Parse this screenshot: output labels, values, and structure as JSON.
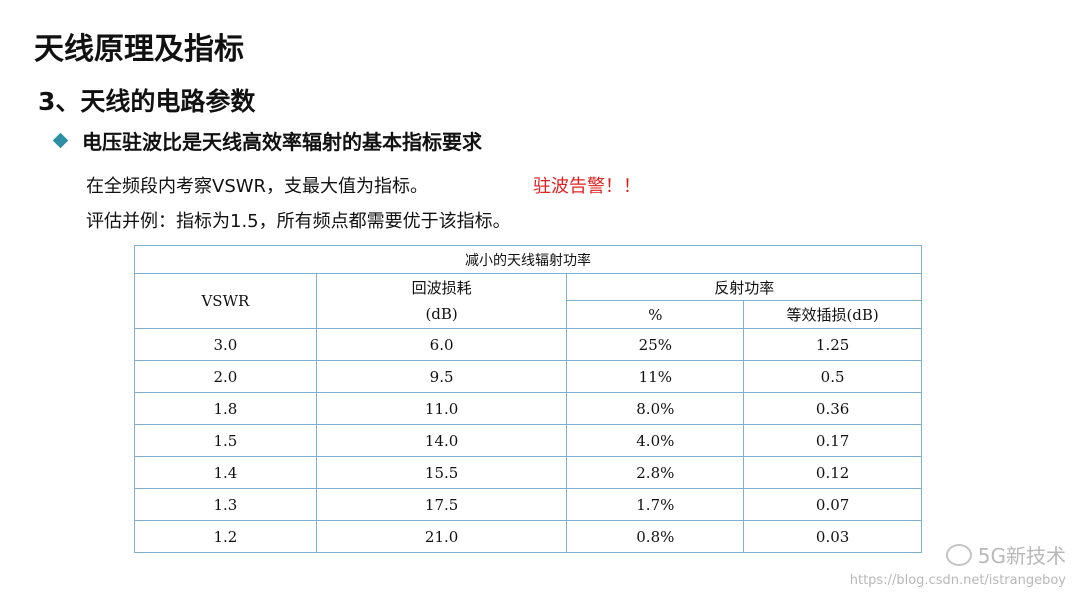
{
  "page_title": "天线原理及指标",
  "section_title": "3、天线的电路参数",
  "bullet": "电压驻波比是天线高效率辐射的基本指标要求",
  "line1": "在全频段内考察VSWR，支最大值为指标。",
  "warning": "驻波告警！！",
  "line2": "评估并例：指标为1.5，所有频点都需要优于该指标。",
  "accent_color": "#2e8ea3",
  "warning_color": "#e02020",
  "table": {
    "caption": "减小的天线辐射功率",
    "col_vswr": "VSWR",
    "col_return_loss": "回波损耗",
    "col_return_loss_unit": "(dB)",
    "col_reflected_power": "反射功率",
    "col_percent": "%",
    "col_insertion_loss": "等效插损(dB)",
    "rows": [
      {
        "vswr": "3.0",
        "return_loss": "6.0",
        "percent": "25%",
        "insertion_loss": "1.25"
      },
      {
        "vswr": "2.0",
        "return_loss": "9.5",
        "percent": "11%",
        "insertion_loss": "0.5"
      },
      {
        "vswr": "1.8",
        "return_loss": "11.0",
        "percent": "8.0%",
        "insertion_loss": "0.36"
      },
      {
        "vswr": "1.5",
        "return_loss": "14.0",
        "percent": "4.0%",
        "insertion_loss": "0.17"
      },
      {
        "vswr": "1.4",
        "return_loss": "15.5",
        "percent": "2.8%",
        "insertion_loss": "0.12"
      },
      {
        "vswr": "1.3",
        "return_loss": "17.5",
        "percent": "1.7%",
        "insertion_loss": "0.07"
      },
      {
        "vswr": "1.2",
        "return_loss": "21.0",
        "percent": "0.8%",
        "insertion_loss": "0.03"
      }
    ]
  },
  "watermark": {
    "brand": "5G新技术",
    "url": "https://blog.csdn.net/istrangeboy",
    "icon": "wechat-icon"
  }
}
